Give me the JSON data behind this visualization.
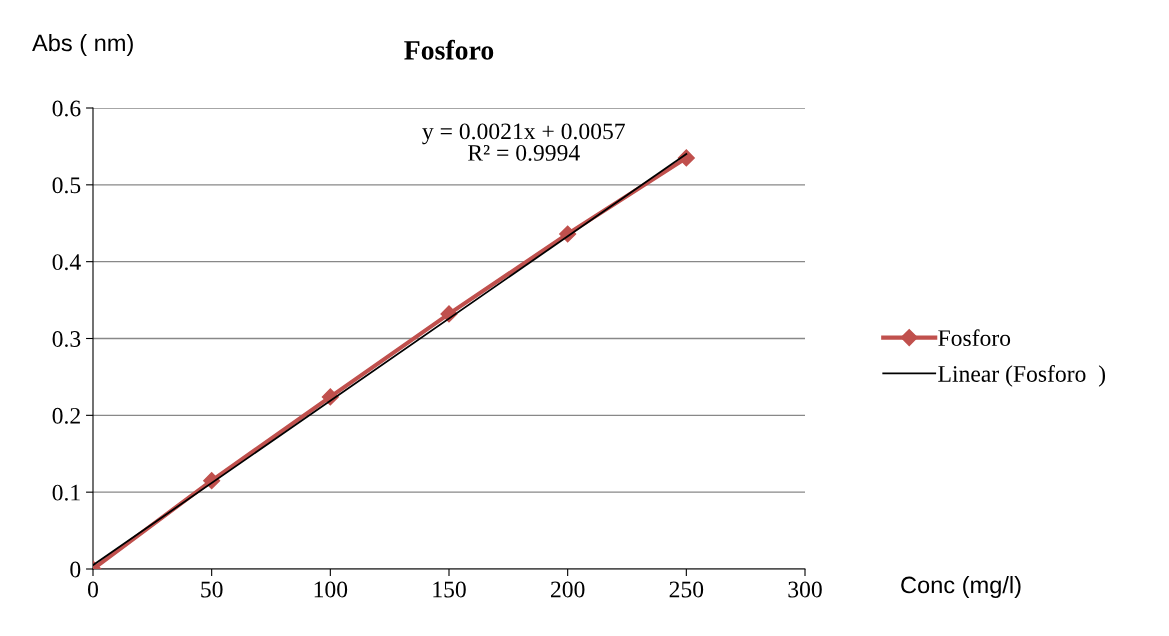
{
  "chart_data": {
    "type": "line",
    "title": "Fosforo",
    "xlabel": "Conc (mg/l)",
    "ylabel": "Abs ( nm)",
    "series": [
      {
        "name": "Fosforo",
        "color": "#c0504d",
        "x": [
          0,
          50,
          100,
          150,
          200,
          250
        ],
        "values": [
          0,
          0.115,
          0.224,
          0.332,
          0.436,
          0.535
        ],
        "marker": "diamond"
      },
      {
        "name": "Linear (Fosforo  )",
        "color": "#000000",
        "x": [
          0,
          250
        ],
        "values": [
          0.005,
          0.54
        ],
        "marker": "none"
      }
    ],
    "annotations": [
      "y = 0.0021x + 0.0057\nR² = 0.9994"
    ],
    "xlim": [
      0,
      300
    ],
    "xticks": [
      0,
      50,
      100,
      150,
      200,
      250,
      300
    ],
    "ylim": [
      0,
      0.6
    ],
    "yticks": [
      0,
      0.1,
      0.2,
      0.3,
      0.4,
      0.5,
      0.6
    ],
    "grid": "y",
    "legend": "right",
    "line_style": "solid"
  }
}
